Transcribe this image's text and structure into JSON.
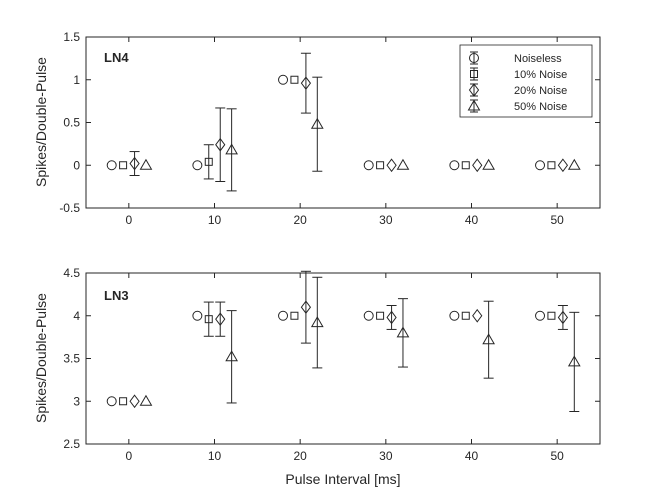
{
  "figure": {
    "xlabel": "Pulse Interval [ms]"
  },
  "legend": {
    "entries": [
      {
        "label": "Noiseless",
        "marker": "circle"
      },
      {
        "label": "10% Noise",
        "marker": "square"
      },
      {
        "label": "20% Noise",
        "marker": "diamond"
      },
      {
        "label": "50% Noise",
        "marker": "triangle"
      }
    ],
    "placement": "top-right of top panel"
  },
  "chart_data": [
    {
      "type": "scatter",
      "panel_label": "LN4",
      "ylabel": "Spikes/Double-Pulse",
      "xlim": [
        -5,
        55
      ],
      "ylim": [
        -0.5,
        1.5
      ],
      "xticks": [
        "0",
        "10",
        "20",
        "30",
        "40",
        "50"
      ],
      "yticks": [
        "-0.5",
        "0",
        "0.5",
        "1",
        "1.5"
      ],
      "x": [
        0,
        10,
        20,
        30,
        40,
        50
      ],
      "series": [
        {
          "name": "Noiseless",
          "marker": "circle",
          "offset_ms": -2,
          "values": [
            0,
            0,
            1,
            0,
            0,
            0
          ],
          "err": [
            0,
            0,
            0,
            0,
            0,
            0
          ]
        },
        {
          "name": "10% Noise",
          "marker": "square",
          "offset_ms": -0.67,
          "values": [
            0,
            0.04,
            1,
            0,
            0,
            0
          ],
          "err": [
            0,
            0.2,
            0,
            0,
            0,
            0
          ]
        },
        {
          "name": "20% Noise",
          "marker": "diamond",
          "offset_ms": 0.67,
          "values": [
            0.02,
            0.24,
            0.96,
            0,
            0,
            0
          ],
          "err": [
            0.14,
            0.43,
            0.35,
            0,
            0,
            0
          ]
        },
        {
          "name": "50% Noise",
          "marker": "triangle",
          "offset_ms": 2,
          "values": [
            0,
            0.18,
            0.48,
            0,
            0,
            0
          ],
          "err": [
            0,
            0.48,
            0.55,
            0,
            0,
            0
          ]
        }
      ]
    },
    {
      "type": "scatter",
      "panel_label": "LN3",
      "ylabel": "Spikes/Double-Pulse",
      "xlim": [
        -5,
        55
      ],
      "ylim": [
        2.5,
        4.5
      ],
      "xticks": [
        "0",
        "10",
        "20",
        "30",
        "40",
        "50"
      ],
      "yticks": [
        "2.5",
        "3",
        "3.5",
        "4",
        "4.5"
      ],
      "x": [
        0,
        10,
        20,
        30,
        40,
        50
      ],
      "series": [
        {
          "name": "Noiseless",
          "marker": "circle",
          "offset_ms": -2,
          "values": [
            3,
            4,
            4,
            4,
            4,
            4
          ],
          "err": [
            0,
            0,
            0,
            0,
            0,
            0
          ]
        },
        {
          "name": "10% Noise",
          "marker": "square",
          "offset_ms": -0.67,
          "values": [
            3,
            3.96,
            4,
            4,
            4,
            4
          ],
          "err": [
            0,
            0.2,
            0,
            0,
            0,
            0
          ]
        },
        {
          "name": "20% Noise",
          "marker": "diamond",
          "offset_ms": 0.67,
          "values": [
            3,
            3.96,
            4.1,
            3.98,
            4,
            3.98
          ],
          "err": [
            0,
            0.2,
            0.42,
            0.14,
            0,
            0.14
          ]
        },
        {
          "name": "50% Noise",
          "marker": "triangle",
          "offset_ms": 2,
          "values": [
            3,
            3.52,
            3.92,
            3.8,
            3.72,
            3.46
          ],
          "err": [
            0,
            0.54,
            0.53,
            0.4,
            0.45,
            0.58
          ]
        }
      ]
    }
  ]
}
